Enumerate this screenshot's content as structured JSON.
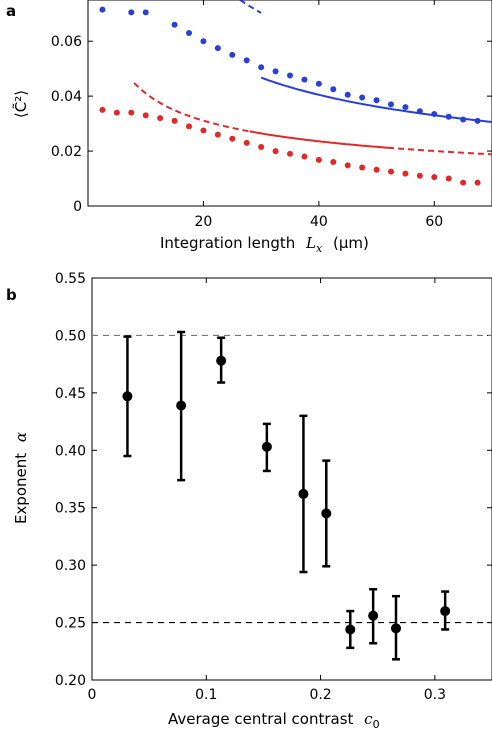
{
  "chart_data": [
    {
      "panel": "a",
      "type": "scatter",
      "xlabel": "Integration length L_x (μm)",
      "ylabel": "⟨C̃²⟩",
      "xlim": [
        0,
        70
      ],
      "ylim": [
        0,
        0.075
      ],
      "xticks": [
        "20",
        "40",
        "60"
      ],
      "yticks": [
        "0",
        "0.02",
        "0.04",
        "0.06"
      ],
      "grid": false,
      "series": [
        {
          "color": "#2a3fd6",
          "style": "points",
          "x": [
            2.5,
            7.5,
            10,
            15,
            17.5,
            20,
            22.5,
            25,
            27.5,
            30,
            32.5,
            35,
            37.5,
            40,
            42.5,
            45,
            47.5,
            50,
            52.5,
            55,
            57.5,
            60,
            62.5,
            65,
            67.5
          ],
          "y": [
            0.0715,
            0.0705,
            0.0705,
            0.066,
            0.063,
            0.06,
            0.0575,
            0.055,
            0.053,
            0.0505,
            0.049,
            0.0475,
            0.046,
            0.0445,
            0.0425,
            0.0405,
            0.0395,
            0.0385,
            0.037,
            0.036,
            0.0345,
            0.0335,
            0.0325,
            0.0315,
            0.031
          ]
        },
        {
          "color": "#2a3fd6",
          "style": "fit-dashed",
          "x_range": [
            14.5,
            30
          ],
          "fit": "a/x^alpha",
          "a": 0.385,
          "alpha": 0.5
        },
        {
          "color": "#2a3fd6",
          "style": "fit-solid",
          "x_range": [
            30,
            70
          ],
          "fit": "a/x^alpha",
          "a": 0.256,
          "alpha": 0.5
        },
        {
          "color": "#e02828",
          "style": "points",
          "x": [
            2.5,
            5,
            7.5,
            10,
            12.5,
            15,
            17.5,
            20,
            22.5,
            25,
            27.5,
            30,
            32.5,
            35,
            37.5,
            40,
            42.5,
            45,
            47.5,
            50,
            52.5,
            55,
            57.5,
            60,
            62.5,
            65,
            67.5
          ],
          "y": [
            0.035,
            0.034,
            0.034,
            0.033,
            0.032,
            0.031,
            0.029,
            0.0275,
            0.026,
            0.0245,
            0.023,
            0.0215,
            0.02,
            0.019,
            0.018,
            0.0168,
            0.016,
            0.0148,
            0.014,
            0.0132,
            0.0125,
            0.0118,
            0.011,
            0.0105,
            0.01,
            0.0085,
            0.0085
          ]
        },
        {
          "color": "#e02828",
          "style": "fit-dashed",
          "x_range": [
            8,
            28
          ],
          "fit": "a/x^alpha",
          "a": 0.103,
          "alpha": 0.4
        },
        {
          "color": "#e02828",
          "style": "fit-solid",
          "x_range": [
            28,
            52
          ],
          "fit": "a/x^alpha",
          "a": 0.103,
          "alpha": 0.4
        },
        {
          "color": "#e02828",
          "style": "fit-dashed",
          "x_range": [
            52,
            70
          ],
          "fit": "a/x^alpha",
          "a": 0.103,
          "alpha": 0.4
        }
      ]
    },
    {
      "panel": "b",
      "type": "scatter",
      "xlabel": "Average central contrast c_0",
      "ylabel": "Exponent α",
      "xlim": [
        0,
        0.35
      ],
      "ylim": [
        0.2,
        0.55
      ],
      "xticks": [
        "0",
        "0.1",
        "0.2",
        "0.3"
      ],
      "yticks": [
        "0.20",
        "0.25",
        "0.30",
        "0.35",
        "0.40",
        "0.45",
        "0.50",
        "0.55"
      ],
      "grid": false,
      "reference_lines": [
        0.5,
        0.25
      ],
      "points": [
        {
          "x": 0.031,
          "y": 0.447,
          "lo": 0.395,
          "hi": 0.499
        },
        {
          "x": 0.078,
          "y": 0.439,
          "lo": 0.374,
          "hi": 0.503
        },
        {
          "x": 0.113,
          "y": 0.478,
          "lo": 0.459,
          "hi": 0.498
        },
        {
          "x": 0.153,
          "y": 0.403,
          "lo": 0.382,
          "hi": 0.423
        },
        {
          "x": 0.185,
          "y": 0.362,
          "lo": 0.294,
          "hi": 0.43
        },
        {
          "x": 0.205,
          "y": 0.345,
          "lo": 0.299,
          "hi": 0.391
        },
        {
          "x": 0.226,
          "y": 0.244,
          "lo": 0.228,
          "hi": 0.26
        },
        {
          "x": 0.246,
          "y": 0.256,
          "lo": 0.232,
          "hi": 0.279
        },
        {
          "x": 0.266,
          "y": 0.245,
          "lo": 0.218,
          "hi": 0.273
        },
        {
          "x": 0.309,
          "y": 0.26,
          "lo": 0.244,
          "hi": 0.277
        }
      ]
    }
  ],
  "labels": {
    "panel_a": "a",
    "panel_b": "b",
    "a_xlabel_prefix": "Integration length",
    "a_xlabel_var": "L",
    "a_xlabel_sub": "x",
    "a_xlabel_unit": "(μm)",
    "a_ylabel": "⟨C̃²⟩",
    "b_xlabel_prefix": "Average central contrast",
    "b_xlabel_var": "c",
    "b_xlabel_sub": "0",
    "b_ylabel_prefix": "Exponent",
    "b_ylabel_var": "α"
  }
}
